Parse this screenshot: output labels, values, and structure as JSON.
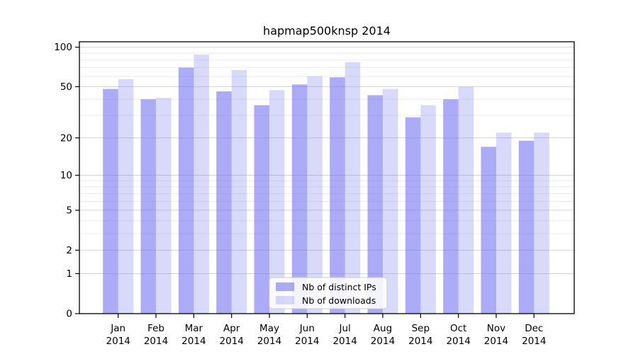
{
  "chart_data": {
    "type": "bar",
    "title": "hapmap500knsp 2014",
    "categories": [
      "Jan",
      "Feb",
      "Mar",
      "Apr",
      "May",
      "Jun",
      "Jul",
      "Aug",
      "Sep",
      "Oct",
      "Nov",
      "Dec"
    ],
    "year_label": "2014",
    "series": [
      {
        "name": "Nb of distinct IPs",
        "color": "rgba(102,102,240,0.55)",
        "values": [
          48,
          40,
          70,
          46,
          36,
          52,
          59,
          43,
          29,
          40,
          17,
          19
        ]
      },
      {
        "name": "Nb of downloads",
        "color": "rgba(102,102,240,0.25)",
        "values": [
          57,
          41,
          88,
          67,
          47,
          60,
          77,
          48,
          36,
          50,
          22,
          22
        ]
      }
    ],
    "yscale": "log1p",
    "ylim": [
      0,
      110
    ],
    "yticks": [
      0,
      1,
      2,
      5,
      10,
      20,
      50,
      100
    ],
    "yticks_minor": [
      3,
      4,
      6,
      7,
      8,
      9,
      30,
      40,
      60,
      70,
      80,
      90
    ],
    "grid": "on",
    "legend_position": "lower center"
  },
  "colors": {
    "bar_accent": "#6666f0",
    "grid_major": "#d4d4d4",
    "grid_minor": "#ebebeb",
    "frame": "#000000",
    "legend_border": "#cccccc",
    "legend_background": "rgba(255,255,255,0.85)",
    "background": "#ffffff"
  }
}
